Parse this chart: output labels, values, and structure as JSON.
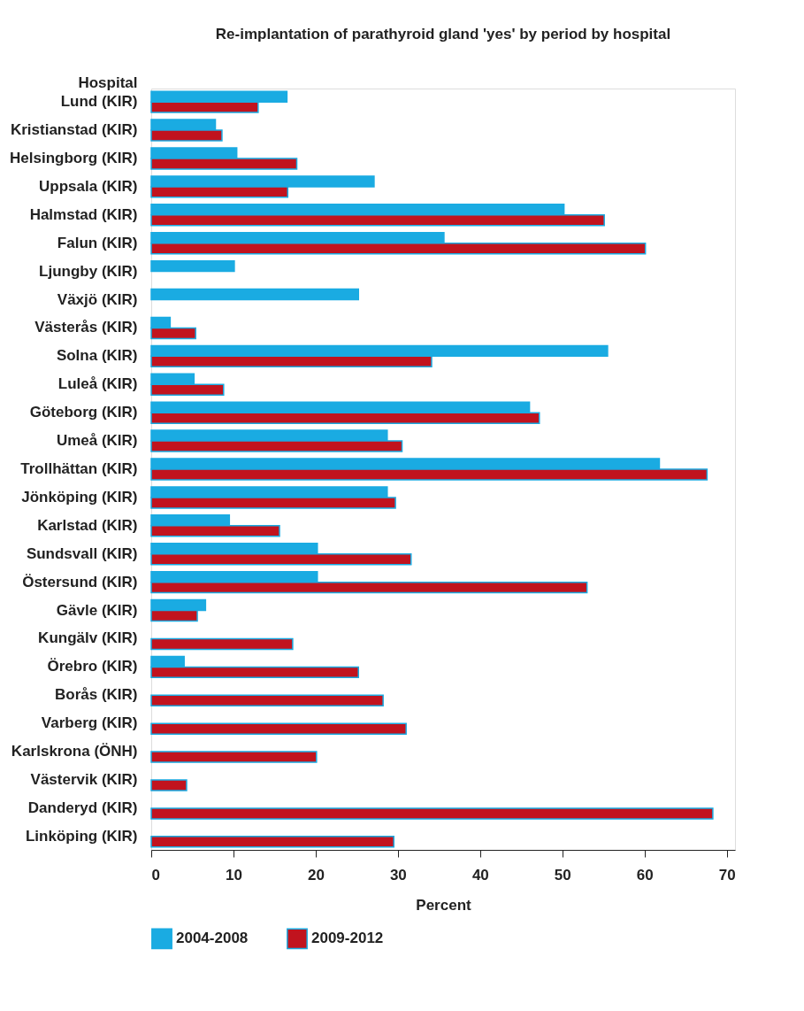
{
  "chart_data": {
    "type": "bar",
    "orientation": "horizontal",
    "title": "Re-implantation of parathyroid gland 'yes' by period by hospital",
    "xlabel": "Percent",
    "ylabel": "Hospital",
    "categories": [
      "Lund (KIR)",
      "Kristianstad (KIR)",
      "Helsingborg (KIR)",
      "Uppsala (KIR)",
      "Halmstad (KIR)",
      "Falun (KIR)",
      "Ljungby (KIR)",
      "Växjö (KIR)",
      "Västerås (KIR)",
      "Solna (KIR)",
      "Luleå (KIR)",
      "Göteborg (KIR)",
      "Umeå (KIR)",
      "Trollhättan (KIR)",
      "Jönköping (KIR)",
      "Karlstad (KIR)",
      "Sundsvall (KIR)",
      "Östersund (KIR)",
      "Gävle (KIR)",
      "Kungälv (KIR)",
      "Örebro (KIR)",
      "Borås (KIR)",
      "Varberg (KIR)",
      "Karlskrona (ÖNH)",
      "Västervik (KIR)",
      "Danderyd (KIR)",
      "Linköping (KIR)"
    ],
    "series": [
      {
        "name": "2004-2008",
        "color": "#1aabe2",
        "values": [
          16.5,
          7.8,
          10.4,
          27.1,
          50.2,
          35.6,
          10.1,
          25.2,
          2.3,
          55.5,
          5.2,
          46.0,
          28.7,
          61.8,
          28.7,
          9.5,
          20.2,
          20.2,
          6.6,
          null,
          4.0,
          null,
          null,
          null,
          null,
          null,
          null
        ]
      },
      {
        "name": "2009-2012",
        "color": "#c1131e",
        "values": [
          13.0,
          8.6,
          17.7,
          16.6,
          55.1,
          60.1,
          null,
          null,
          5.4,
          34.1,
          8.8,
          47.2,
          30.5,
          67.6,
          29.7,
          15.6,
          31.6,
          53.0,
          5.6,
          17.2,
          25.2,
          28.2,
          31.0,
          20.1,
          4.3,
          68.3,
          29.5
        ]
      }
    ],
    "xlim": [
      0,
      71
    ],
    "xticks": [
      0,
      10,
      20,
      30,
      40,
      50,
      60,
      70
    ],
    "grid": false,
    "legend": "bottom"
  }
}
